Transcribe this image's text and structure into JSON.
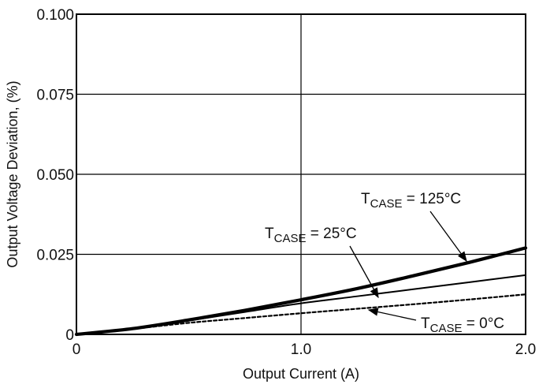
{
  "chart_data": {
    "type": "line",
    "title": "",
    "xlabel": "Output Current (A)",
    "ylabel": "Output Voltage Deviation, (%)",
    "xlim": [
      0,
      2.0
    ],
    "ylim": [
      0,
      0.1
    ],
    "xticks": [
      0,
      1.0,
      2.0
    ],
    "xtick_labels": [
      "0",
      "1.0",
      "2.0"
    ],
    "yticks": [
      0,
      0.025,
      0.05,
      0.075,
      0.1
    ],
    "ytick_labels": [
      "0",
      "0.025",
      "0.050",
      "0.075",
      "0.100"
    ],
    "grid": true,
    "series": [
      {
        "name": "TCASE = 125°C",
        "label_main": "T",
        "label_sub": "CASE",
        "label_rest": " = 125°C",
        "style": "solid-thick",
        "x": [
          0,
          0.25,
          0.5,
          0.75,
          1.0,
          1.25,
          1.5,
          1.75,
          2.0
        ],
        "y": [
          0,
          0.0018,
          0.0045,
          0.0075,
          0.0108,
          0.0143,
          0.0183,
          0.0225,
          0.027
        ]
      },
      {
        "name": "TCASE = 25°C",
        "label_main": "T",
        "label_sub": "CASE",
        "label_rest": " = 25°C",
        "style": "solid-thin",
        "x": [
          0,
          0.25,
          0.5,
          0.75,
          1.0,
          1.25,
          1.5,
          1.75,
          2.0
        ],
        "y": [
          0,
          0.0018,
          0.0043,
          0.007,
          0.0097,
          0.0119,
          0.0141,
          0.0163,
          0.0185
        ]
      },
      {
        "name": "TCASE = 0°C",
        "label_main": "T",
        "label_sub": "CASE",
        "label_rest": " = 0°C",
        "style": "dashed",
        "x": [
          0,
          0.25,
          0.5,
          0.75,
          1.0,
          1.25,
          1.5,
          1.75,
          2.0
        ],
        "y": [
          0,
          0.0017,
          0.0036,
          0.0051,
          0.0066,
          0.008,
          0.0094,
          0.0109,
          0.0125
        ]
      }
    ]
  },
  "colors": {
    "line": "#000000",
    "grid": "#000000",
    "background": "#ffffff"
  }
}
